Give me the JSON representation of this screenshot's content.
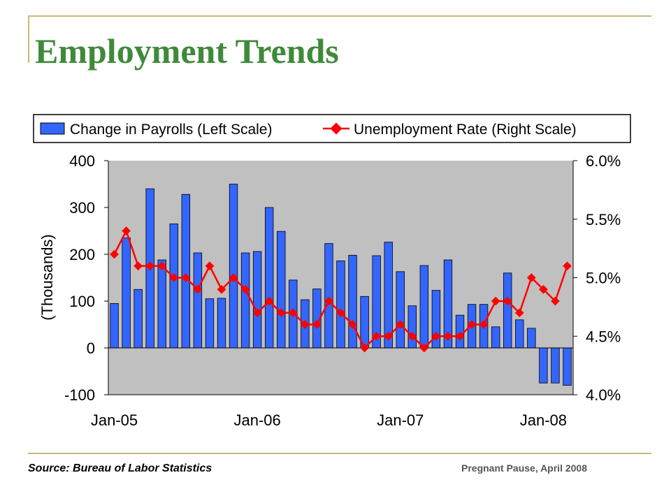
{
  "page": {
    "title": "Employment Trends",
    "source": "Source: Bureau of Labor Statistics",
    "credit": "Pregnant Pause, April 2008"
  },
  "colors": {
    "title": "#3f8a3a",
    "frame": "#c9b877",
    "plot_bg": "#c0c0c0",
    "bar_fill": "#3366ff",
    "line": "#ff0000"
  },
  "chart_data": {
    "type": "bar",
    "title": "",
    "xlabel": "",
    "ylabel": "(Thousands)",
    "ylim": [
      -100,
      400
    ],
    "y2lim": [
      4.0,
      6.0
    ],
    "yticks": [
      "400",
      "300",
      "200",
      "100",
      "0",
      "-100"
    ],
    "y2ticks": [
      "6.0%",
      "5.5%",
      "5.0%",
      "4.5%",
      "4.0%"
    ],
    "xticks": [
      "Jan-05",
      "Jan-06",
      "Jan-07",
      "Jan-08"
    ],
    "grid": false,
    "legend_position": "top",
    "x": [
      "Jan-05",
      "Feb-05",
      "Mar-05",
      "Apr-05",
      "May-05",
      "Jun-05",
      "Jul-05",
      "Aug-05",
      "Sep-05",
      "Oct-05",
      "Nov-05",
      "Dec-05",
      "Jan-06",
      "Feb-06",
      "Mar-06",
      "Apr-06",
      "May-06",
      "Jun-06",
      "Jul-06",
      "Aug-06",
      "Sep-06",
      "Oct-06",
      "Nov-06",
      "Dec-06",
      "Jan-07",
      "Feb-07",
      "Mar-07",
      "Apr-07",
      "May-07",
      "Jun-07",
      "Jul-07",
      "Aug-07",
      "Sep-07",
      "Oct-07",
      "Nov-07",
      "Dec-07",
      "Jan-08",
      "Feb-08",
      "Mar-08"
    ],
    "series": [
      {
        "name": "Change in Payrolls (Left Scale)",
        "type": "bar",
        "axis": "left",
        "values": [
          95,
          235,
          125,
          340,
          188,
          265,
          328,
          203,
          105,
          106,
          350,
          203,
          206,
          300,
          249,
          145,
          103,
          126,
          223,
          186,
          198,
          110,
          197,
          226,
          163,
          90,
          176,
          123,
          188,
          70,
          93,
          93,
          45,
          160,
          60,
          42,
          -75,
          -75,
          -80
        ]
      },
      {
        "name": "Unemployment Rate (Right Scale)",
        "type": "line",
        "axis": "right",
        "values": [
          5.2,
          5.4,
          5.1,
          5.1,
          5.1,
          5.0,
          5.0,
          4.9,
          5.1,
          4.9,
          5.0,
          4.9,
          4.7,
          4.8,
          4.7,
          4.7,
          4.6,
          4.6,
          4.8,
          4.7,
          4.6,
          4.4,
          4.5,
          4.5,
          4.6,
          4.5,
          4.4,
          4.5,
          4.5,
          4.5,
          4.6,
          4.6,
          4.8,
          4.8,
          4.7,
          5.0,
          4.9,
          4.8,
          5.1
        ]
      }
    ]
  }
}
